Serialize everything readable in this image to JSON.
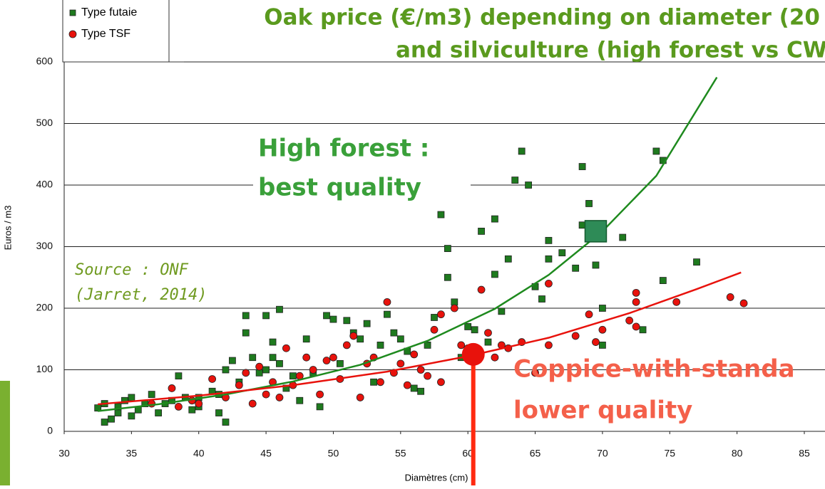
{
  "chart_data": {
    "type": "scatter",
    "title_lines": [
      "Oak price (€/m3) depending on diameter (20",
      "and silviculture (high forest vs CW"
    ],
    "xlabel": "Diamètres (cm)",
    "ylabel": "Euros / m3",
    "xlim": [
      30,
      85
    ],
    "xticks": [
      30,
      35,
      40,
      45,
      50,
      55,
      60,
      65,
      70,
      75,
      80,
      85
    ],
    "ylim": [
      0,
      600
    ],
    "yticks": [
      0,
      100,
      200,
      300,
      400,
      500,
      600
    ],
    "grid": true,
    "legend": "top-left",
    "series": [
      {
        "name": "Type futaie",
        "color": "#1e7a1e",
        "marker": "square",
        "x": [
          32.5,
          33,
          33.5,
          33,
          34,
          34,
          34.5,
          35,
          35,
          35.5,
          36,
          36.5,
          37,
          37.5,
          38,
          38.5,
          39,
          39.5,
          40,
          40,
          41,
          41.5,
          41.5,
          42,
          42,
          42.5,
          43,
          43.5,
          43.5,
          44,
          44.5,
          45,
          45,
          45.5,
          45.5,
          46,
          46,
          46.5,
          47,
          47.5,
          48,
          48.5,
          49,
          49.5,
          50,
          50.5,
          51,
          51.5,
          52,
          52.5,
          53,
          53.5,
          54,
          54.5,
          55,
          55.5,
          56,
          56.5,
          57,
          57.5,
          58,
          58.5,
          58.5,
          59,
          59.5,
          60,
          60.5,
          61,
          61.5,
          62,
          62,
          62.5,
          63,
          63.5,
          64,
          64.5,
          65,
          65.5,
          66,
          66,
          67,
          68,
          68.5,
          68.5,
          69,
          69.5,
          70,
          70,
          71.5,
          73,
          74,
          74.5,
          74.5,
          77
        ],
        "values": [
          38,
          15,
          20,
          45,
          30,
          40,
          50,
          25,
          55,
          35,
          45,
          60,
          30,
          45,
          50,
          90,
          55,
          35,
          40,
          55,
          65,
          60,
          30,
          15,
          100,
          115,
          80,
          160,
          188,
          120,
          95,
          188,
          100,
          145,
          120,
          198,
          110,
          70,
          90,
          50,
          150,
          95,
          40,
          188,
          182,
          110,
          180,
          160,
          150,
          175,
          80,
          140,
          190,
          160,
          150,
          130,
          70,
          65,
          140,
          185,
          352,
          250,
          297,
          210,
          120,
          170,
          165,
          325,
          145,
          255,
          345,
          195,
          280,
          408,
          455,
          400,
          235,
          215,
          310,
          280,
          290,
          265,
          335,
          430,
          370,
          270,
          140,
          200,
          315,
          165,
          455,
          440,
          245,
          275
        ]
      },
      {
        "name": "Type TSF",
        "color": "#e8120c",
        "marker": "circle",
        "x": [
          36.5,
          38,
          38.5,
          39.5,
          40,
          41,
          42,
          43,
          43.5,
          44,
          44.5,
          45,
          45.5,
          46,
          46.5,
          47,
          47.5,
          48,
          48.5,
          49,
          49.5,
          50,
          50.5,
          51,
          51.5,
          52,
          52.5,
          53,
          53.5,
          54,
          54.5,
          55,
          55.5,
          56,
          56.5,
          57,
          57.5,
          58,
          58,
          59,
          59.5,
          60,
          61,
          61.5,
          62,
          62.5,
          63,
          64,
          65,
          66,
          66,
          68,
          69,
          69.5,
          70,
          72,
          72.5,
          72.5,
          72.5,
          75.5,
          79.5,
          80.5
        ],
        "values": [
          45,
          70,
          40,
          50,
          45,
          85,
          55,
          75,
          95,
          45,
          105,
          60,
          80,
          55,
          135,
          75,
          90,
          120,
          100,
          60,
          115,
          120,
          85,
          140,
          155,
          55,
          110,
          120,
          80,
          210,
          95,
          110,
          75,
          125,
          100,
          90,
          165,
          190,
          80,
          200,
          140,
          135,
          230,
          160,
          120,
          140,
          135,
          145,
          95,
          140,
          240,
          155,
          190,
          145,
          165,
          180,
          170,
          225,
          210,
          210,
          218,
          208
        ]
      }
    ],
    "trendlines": [
      {
        "color": "#1e8a1e",
        "x": [
          32.5,
          37,
          42,
          47,
          52,
          57,
          62,
          66,
          70,
          74,
          78.5
        ],
        "values": [
          33,
          44,
          60,
          81,
          108,
          147,
          199,
          254,
          325,
          415,
          575
        ]
      },
      {
        "color": "#e8120c",
        "x": [
          32.5,
          40,
          47,
          54,
          60,
          66,
          72,
          77,
          80.3
        ],
        "values": [
          44,
          58,
          75,
          97,
          122,
          152,
          192,
          231,
          258
        ]
      }
    ],
    "highlights": [
      {
        "x": 69.5,
        "value": 325,
        "color": "#2e8b57",
        "marker": "square",
        "line_color": "#1e9a1e"
      },
      {
        "x": 60.4,
        "value": 125,
        "color": "#e8120c",
        "marker": "circle",
        "line_color": "#ff2a10"
      }
    ],
    "annotations": {
      "high_forest": [
        "High forest :",
        "best quality"
      ],
      "source": [
        "Source : ONF",
        "(Jarret, 2014)"
      ],
      "coppice": [
        "Coppice-with-standa",
        "lower quality"
      ]
    }
  }
}
